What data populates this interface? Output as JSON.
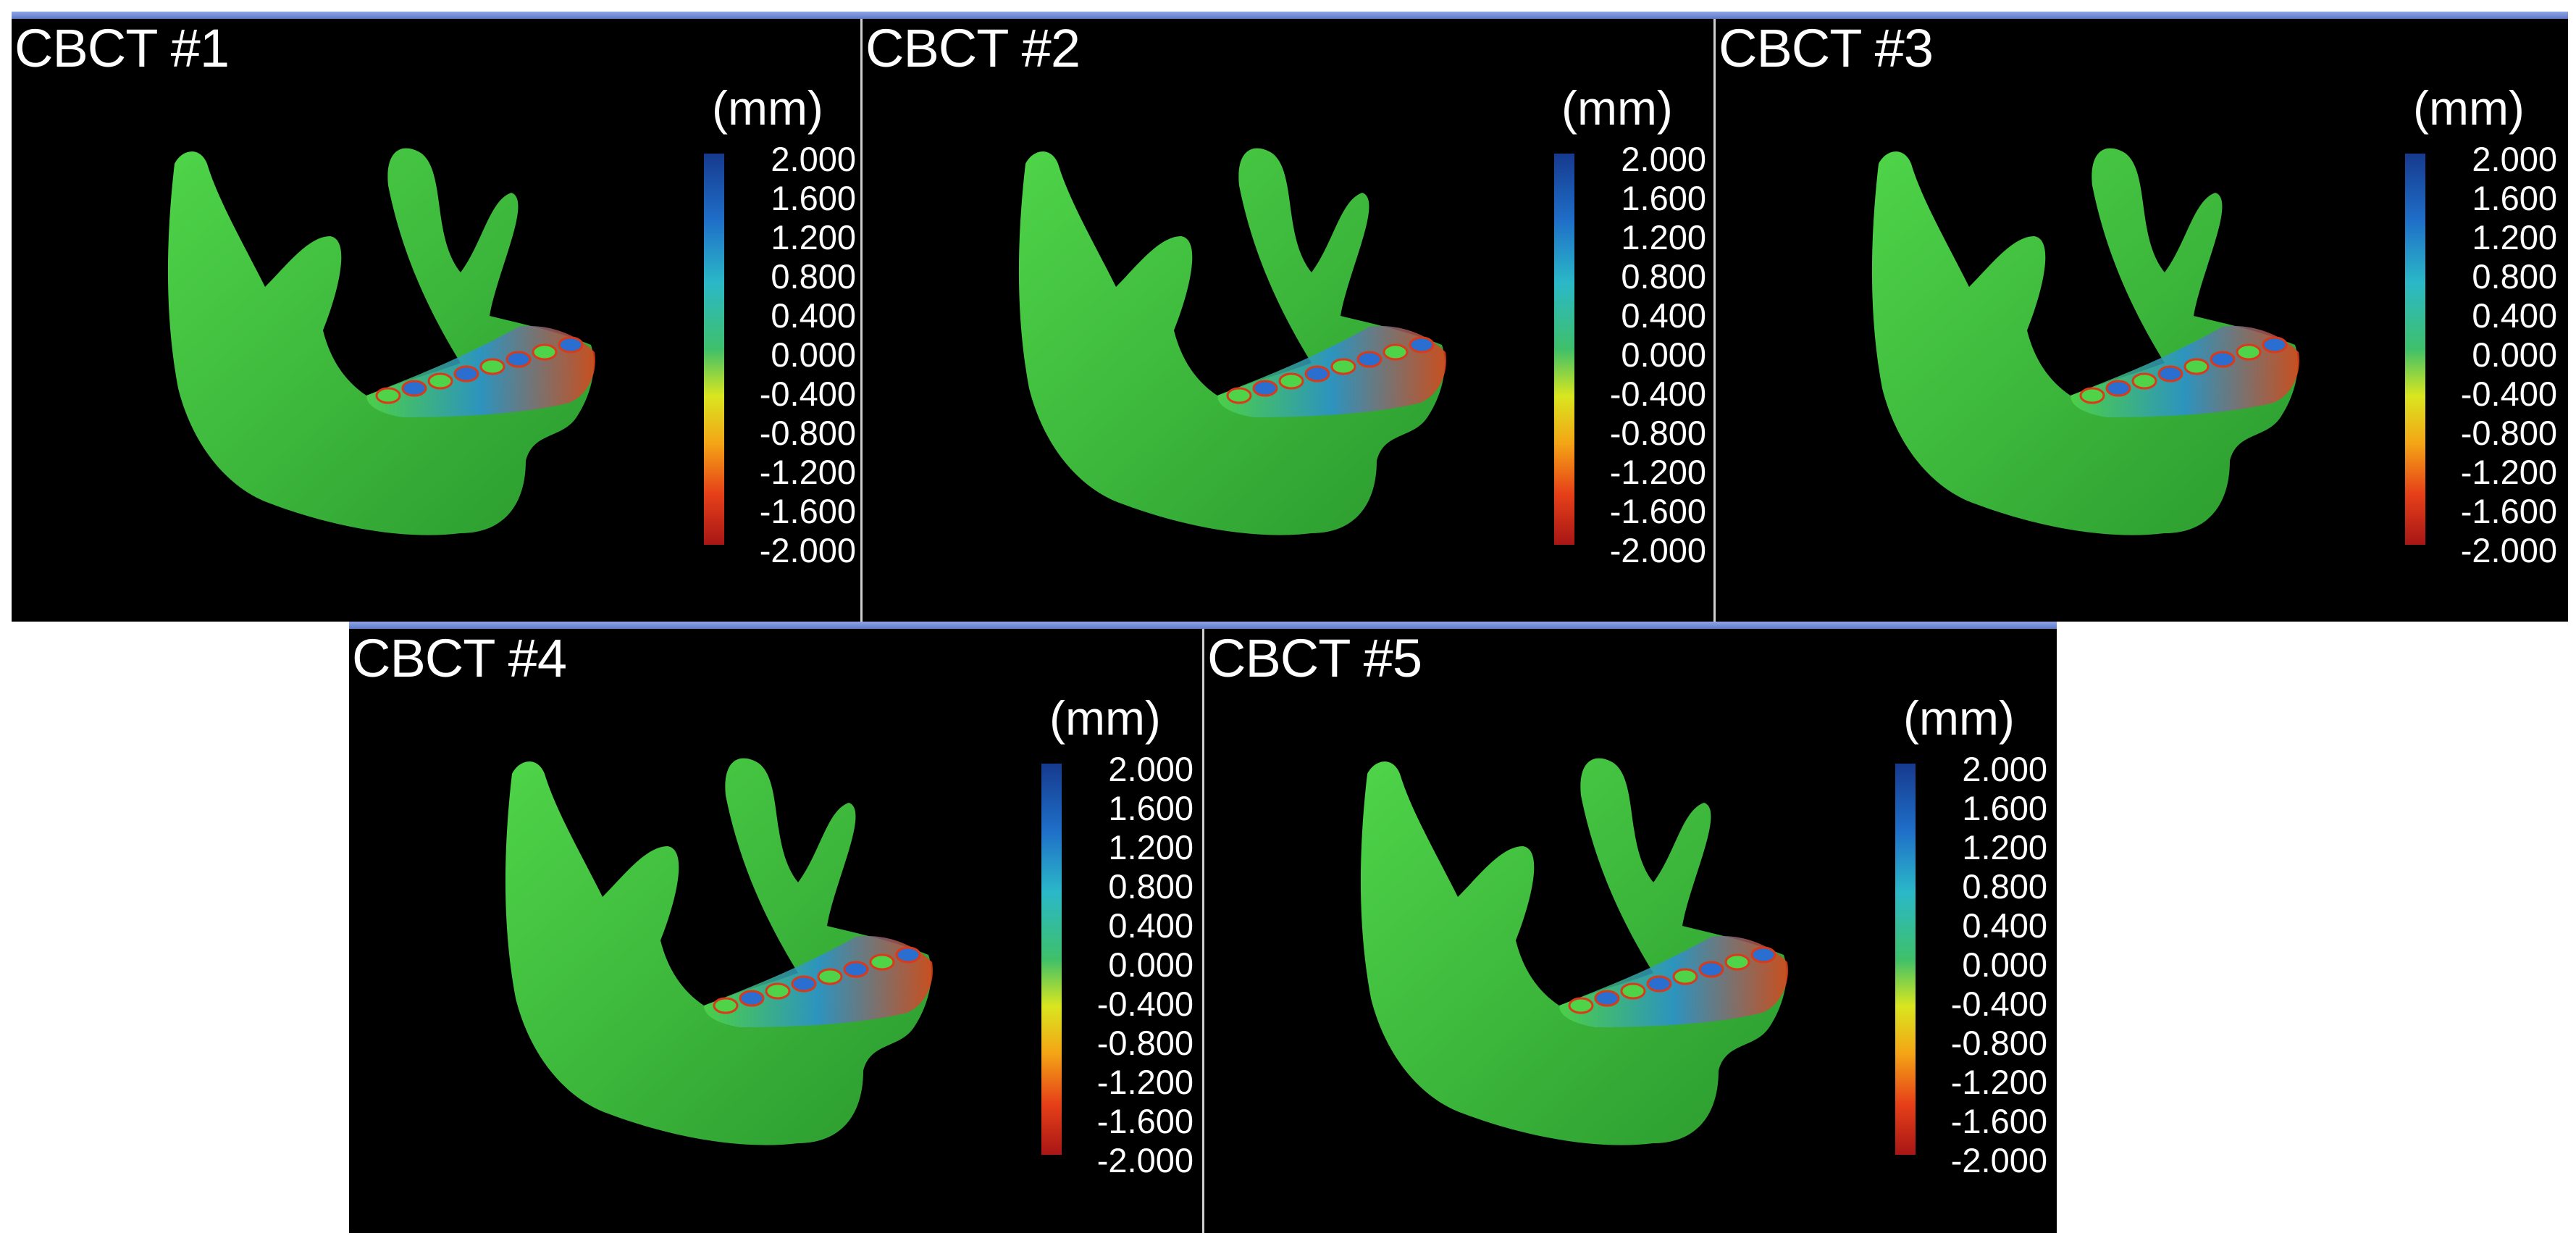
{
  "panels": [
    {
      "title": "CBCT #1",
      "unit": "(mm)",
      "ticks": [
        "2.000",
        "1.600",
        "1.200",
        "0.800",
        "0.400",
        "0.000",
        "-0.400",
        "-0.800",
        "-1.200",
        "-1.600",
        "-2.000"
      ]
    },
    {
      "title": "CBCT #2",
      "unit": "(mm)",
      "ticks": [
        "2.000",
        "1.600",
        "1.200",
        "0.800",
        "0.400",
        "0.000",
        "-0.400",
        "-0.800",
        "-1.200",
        "-1.600",
        "-2.000"
      ]
    },
    {
      "title": "CBCT #3",
      "unit": "(mm)",
      "ticks": [
        "2.000",
        "1.600",
        "1.200",
        "0.800",
        "0.400",
        "0.000",
        "-0.400",
        "-0.800",
        "-1.200",
        "-1.600",
        "-2.000"
      ]
    },
    {
      "title": "CBCT #4",
      "unit": "(mm)",
      "ticks": [
        "2.000",
        "1.600",
        "1.200",
        "0.800",
        "0.400",
        "0.000",
        "-0.400",
        "-0.800",
        "-1.200",
        "-1.600",
        "-2.000"
      ]
    },
    {
      "title": "CBCT #5",
      "unit": "(mm)",
      "ticks": [
        "2.000",
        "1.600",
        "1.200",
        "0.800",
        "0.400",
        "0.000",
        "-0.400",
        "-0.800",
        "-1.200",
        "-1.600",
        "-2.000"
      ]
    }
  ],
  "colors": {
    "bone": "#4fd449",
    "bone_shadow": "#2a9a2e",
    "colorbar_top": "#163a8e",
    "colorbar_mid": "#3ec06a",
    "colorbar_bottom": "#a81616"
  }
}
